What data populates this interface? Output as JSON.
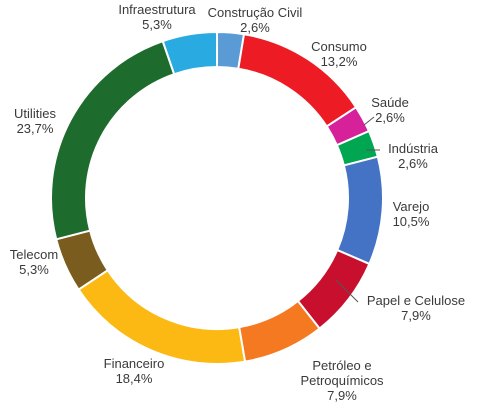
{
  "chart_data": {
    "type": "pie",
    "title": "",
    "series": [
      {
        "values": [
          2.6,
          13.2,
          2.6,
          2.6,
          10.5,
          7.9,
          7.9,
          18.4,
          5.3,
          23.7,
          5.3
        ]
      }
    ],
    "categories": [
      "Construção Civil",
      "Consumo",
      "Saúde",
      "Indústria",
      "Varejo",
      "Papel e Celulose",
      "Petróleo e Petroquímicos",
      "Financeiro",
      "Telecom",
      "Utilities",
      "Infraestrutura"
    ],
    "value_labels": [
      "2,6%",
      "13,2%",
      "2,6%",
      "2,6%",
      "10,5%",
      "7,9%",
      "7,9%",
      "18,4%",
      "5,3%",
      "23,7%",
      "5,3%"
    ],
    "category_labels": [
      [
        "Construção Civil"
      ],
      [
        "Consumo"
      ],
      [
        "Saúde"
      ],
      [
        "Indústria"
      ],
      [
        "Varejo"
      ],
      [
        "Papel e Celulose"
      ],
      [
        "Petróleo e",
        "Petroquímicos"
      ],
      [
        "Financeiro"
      ],
      [
        "Telecom"
      ],
      [
        "Utilities"
      ],
      [
        "Infraestrutura"
      ]
    ],
    "colors": [
      "#5b9bd5",
      "#ed1c24",
      "#d6219a",
      "#00a651",
      "#4472c4",
      "#c8102e",
      "#f47920",
      "#fdb913",
      "#7a5c1e",
      "#1e6b2e",
      "#29abe2"
    ],
    "donut": true,
    "legend": "none"
  }
}
